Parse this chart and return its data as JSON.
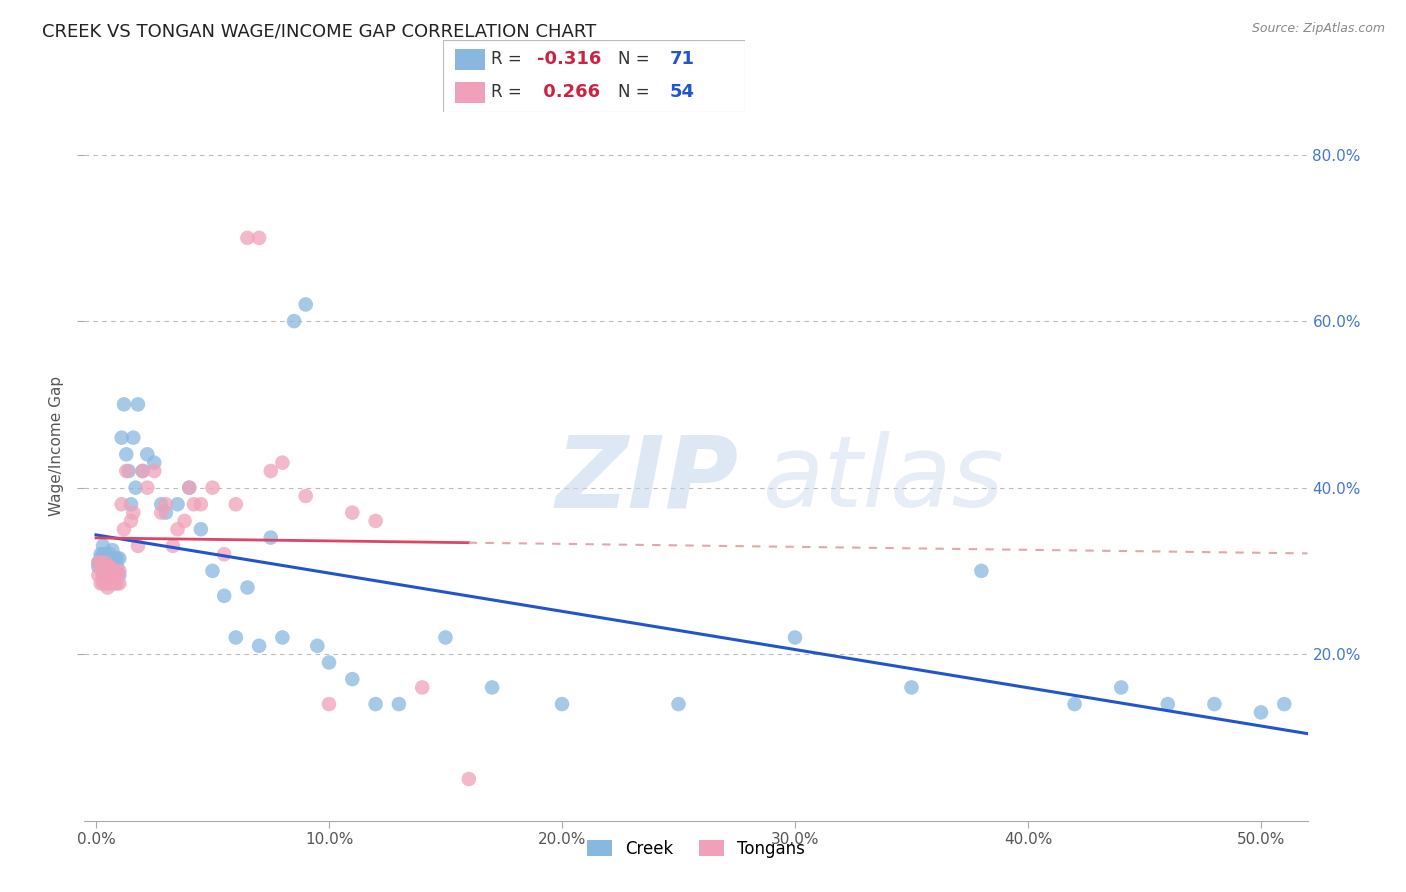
{
  "title": "CREEK VS TONGAN WAGE/INCOME GAP CORRELATION CHART",
  "source": "Source: ZipAtlas.com",
  "ylabel": "Wage/Income Gap",
  "xlabel_ticks": [
    "0.0%",
    "10.0%",
    "20.0%",
    "30.0%",
    "40.0%",
    "50.0%"
  ],
  "xlabel_values": [
    0.0,
    0.1,
    0.2,
    0.3,
    0.4,
    0.5
  ],
  "ylabel_ticks": [
    "20.0%",
    "40.0%",
    "60.0%",
    "80.0%"
  ],
  "ylabel_values": [
    0.2,
    0.4,
    0.6,
    0.8
  ],
  "xlim": [
    -0.005,
    0.52
  ],
  "ylim": [
    0.0,
    0.9
  ],
  "creek_color": "#88b8e0",
  "tongan_color": "#f0a0b8",
  "creek_line_color": "#2255cc",
  "tongan_line_color": "#dd4466",
  "tongan_dashed_color": "#ddaaaa",
  "watermark_zip": "ZIP",
  "watermark_atlas": "atlas",
  "legend_creek_R": "-0.316",
  "legend_creek_N": "71",
  "legend_tongan_R": "0.266",
  "legend_tongan_N": "54",
  "creek_x": [
    0.001,
    0.001,
    0.002,
    0.002,
    0.002,
    0.003,
    0.003,
    0.003,
    0.003,
    0.004,
    0.004,
    0.004,
    0.004,
    0.005,
    0.005,
    0.005,
    0.005,
    0.006,
    0.006,
    0.006,
    0.007,
    0.007,
    0.008,
    0.008,
    0.009,
    0.009,
    0.01,
    0.01,
    0.011,
    0.012,
    0.013,
    0.014,
    0.015,
    0.016,
    0.017,
    0.018,
    0.02,
    0.022,
    0.025,
    0.028,
    0.03,
    0.035,
    0.04,
    0.045,
    0.05,
    0.055,
    0.06,
    0.065,
    0.07,
    0.075,
    0.08,
    0.085,
    0.09,
    0.095,
    0.1,
    0.11,
    0.12,
    0.13,
    0.15,
    0.17,
    0.2,
    0.25,
    0.3,
    0.35,
    0.38,
    0.42,
    0.44,
    0.46,
    0.48,
    0.5,
    0.51
  ],
  "creek_y": [
    0.305,
    0.31,
    0.32,
    0.315,
    0.31,
    0.33,
    0.295,
    0.305,
    0.32,
    0.295,
    0.31,
    0.32,
    0.3,
    0.295,
    0.315,
    0.31,
    0.305,
    0.3,
    0.32,
    0.295,
    0.31,
    0.325,
    0.295,
    0.315,
    0.305,
    0.315,
    0.295,
    0.315,
    0.46,
    0.5,
    0.44,
    0.42,
    0.38,
    0.46,
    0.4,
    0.5,
    0.42,
    0.44,
    0.43,
    0.38,
    0.37,
    0.38,
    0.4,
    0.35,
    0.3,
    0.27,
    0.22,
    0.28,
    0.21,
    0.34,
    0.22,
    0.6,
    0.62,
    0.21,
    0.19,
    0.17,
    0.14,
    0.14,
    0.22,
    0.16,
    0.14,
    0.14,
    0.22,
    0.16,
    0.3,
    0.14,
    0.16,
    0.14,
    0.14,
    0.13,
    0.14
  ],
  "tongan_x": [
    0.001,
    0.001,
    0.002,
    0.002,
    0.003,
    0.003,
    0.003,
    0.004,
    0.004,
    0.004,
    0.005,
    0.005,
    0.005,
    0.006,
    0.006,
    0.006,
    0.007,
    0.007,
    0.008,
    0.008,
    0.009,
    0.009,
    0.01,
    0.01,
    0.011,
    0.012,
    0.013,
    0.015,
    0.016,
    0.018,
    0.02,
    0.022,
    0.025,
    0.028,
    0.03,
    0.033,
    0.035,
    0.038,
    0.04,
    0.042,
    0.045,
    0.05,
    0.055,
    0.06,
    0.065,
    0.07,
    0.075,
    0.08,
    0.09,
    0.1,
    0.11,
    0.12,
    0.14,
    0.16
  ],
  "tongan_y": [
    0.295,
    0.31,
    0.31,
    0.285,
    0.295,
    0.285,
    0.3,
    0.31,
    0.285,
    0.295,
    0.285,
    0.305,
    0.28,
    0.29,
    0.305,
    0.285,
    0.29,
    0.3,
    0.295,
    0.285,
    0.285,
    0.295,
    0.285,
    0.3,
    0.38,
    0.35,
    0.42,
    0.36,
    0.37,
    0.33,
    0.42,
    0.4,
    0.42,
    0.37,
    0.38,
    0.33,
    0.35,
    0.36,
    0.4,
    0.38,
    0.38,
    0.4,
    0.32,
    0.38,
    0.7,
    0.7,
    0.42,
    0.43,
    0.39,
    0.14,
    0.37,
    0.36,
    0.16,
    0.05
  ]
}
